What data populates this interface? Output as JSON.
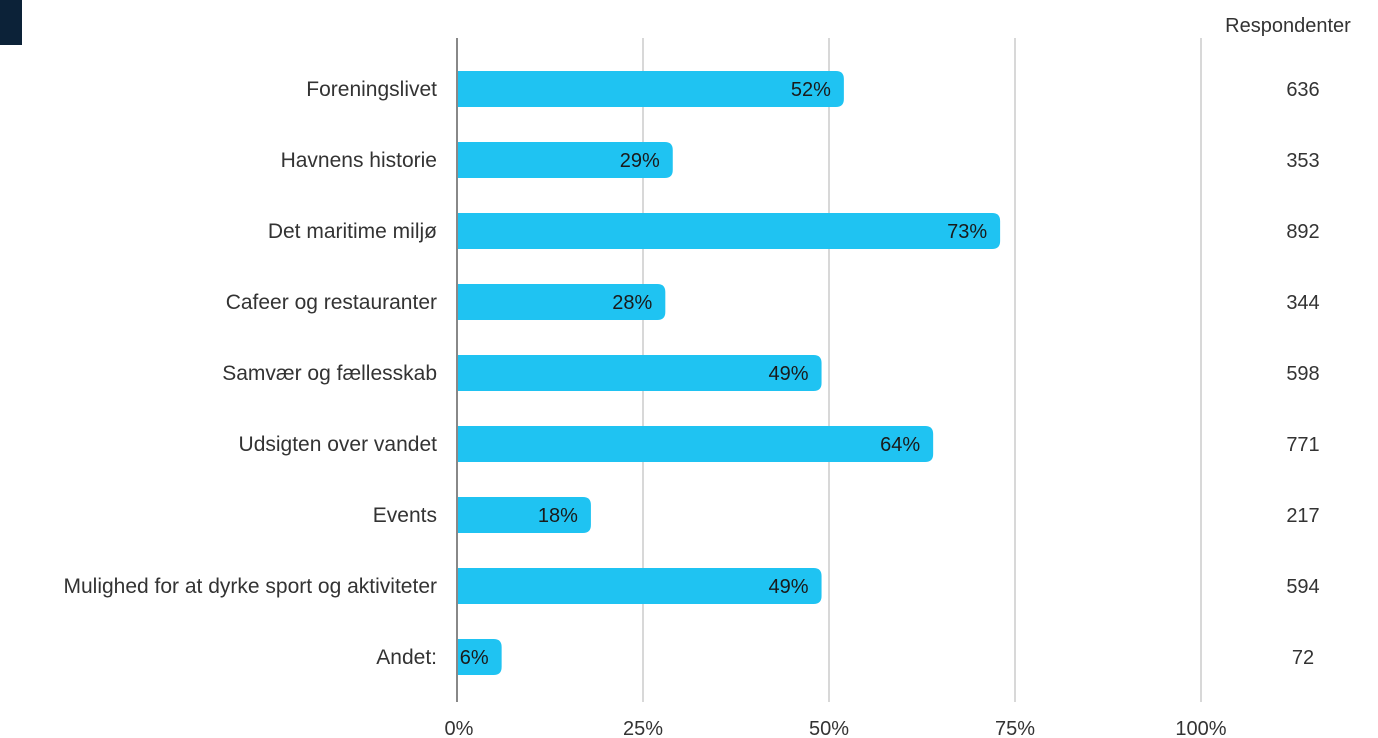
{
  "colors": {
    "bar": "#1fc3f2",
    "grid": "#cccccc",
    "axis": "#888888",
    "corner_block": "#0c2238"
  },
  "chart_data": {
    "type": "bar",
    "orientation": "horizontal",
    "categories": [
      "Foreningslivet",
      "Havnens historie",
      "Det maritime miljø",
      "Cafeer og restauranter",
      "Samvær og fællesskab",
      "Udsigten over vandet",
      "Events",
      "Mulighed for at dyrke sport og aktiviteter",
      "Andet:"
    ],
    "values": [
      52,
      29,
      73,
      28,
      49,
      64,
      18,
      49,
      6
    ],
    "value_labels": [
      "52%",
      "29%",
      "73%",
      "28%",
      "49%",
      "64%",
      "18%",
      "49%",
      "6%"
    ],
    "xlim": [
      0,
      100
    ],
    "x_ticks": [
      0,
      25,
      50,
      75,
      100
    ],
    "x_tick_labels": [
      "0%",
      "25%",
      "50%",
      "75%",
      "100%"
    ],
    "grid": true,
    "respondents_header": "Respondenter",
    "respondents": [
      "636",
      "353",
      "892",
      "344",
      "598",
      "771",
      "217",
      "594",
      "72"
    ]
  }
}
